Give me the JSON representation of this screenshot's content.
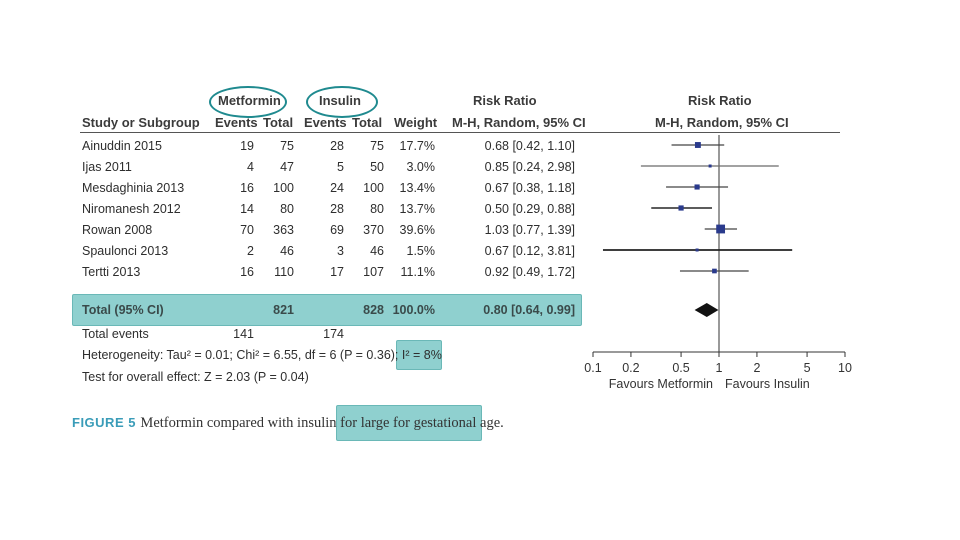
{
  "group_headers": {
    "metformin": "Metformin",
    "insulin": "Insulin"
  },
  "columns": {
    "study": "Study or Subgroup",
    "met_events": "Events",
    "met_total": "Total",
    "ins_events": "Events",
    "ins_total": "Total",
    "weight": "Weight",
    "rr_title": "Risk Ratio",
    "rr_method": "M-H, Random, 95% CI",
    "plot_title": "Risk Ratio",
    "plot_method": "M-H, Random, 95% CI"
  },
  "studies": [
    {
      "name": "Ainuddin 2015",
      "met_events": "19",
      "met_total": "75",
      "ins_events": "28",
      "ins_total": "75",
      "weight": "17.7%",
      "ci_text": "0.68 [0.42, 1.10]"
    },
    {
      "name": "Ijas 2011",
      "met_events": "4",
      "met_total": "47",
      "ins_events": "5",
      "ins_total": "50",
      "weight": "3.0%",
      "ci_text": "0.85 [0.24, 2.98]"
    },
    {
      "name": "Mesdaghinia 2013",
      "met_events": "16",
      "met_total": "100",
      "ins_events": "24",
      "ins_total": "100",
      "weight": "13.4%",
      "ci_text": "0.67 [0.38, 1.18]"
    },
    {
      "name": "Niromanesh 2012",
      "met_events": "14",
      "met_total": "80",
      "ins_events": "28",
      "ins_total": "80",
      "weight": "13.7%",
      "ci_text": "0.50 [0.29, 0.88]"
    },
    {
      "name": "Rowan 2008",
      "met_events": "70",
      "met_total": "363",
      "ins_events": "69",
      "ins_total": "370",
      "weight": "39.6%",
      "ci_text": "1.03 [0.77, 1.39]"
    },
    {
      "name": "Spaulonci 2013",
      "met_events": "2",
      "met_total": "46",
      "ins_events": "3",
      "ins_total": "46",
      "weight": "1.5%",
      "ci_text": "0.67 [0.12, 3.81]"
    },
    {
      "name": "Tertti 2013",
      "met_events": "16",
      "met_total": "110",
      "ins_events": "17",
      "ins_total": "107",
      "weight": "11.1%",
      "ci_text": "0.92 [0.49, 1.72]"
    }
  ],
  "total": {
    "label": "Total (95% CI)",
    "met_total": "821",
    "ins_total": "828",
    "weight": "100.0%",
    "ci_text": "0.80 [0.64, 0.99]"
  },
  "total_events": {
    "label": "Total events",
    "met": "141",
    "ins": "174"
  },
  "heterogeneity": {
    "text": "Heterogeneity: Tau² = 0.01; Chi² = 6.55, df = 6 (P = 0.36); ",
    "i2": "I² = 8%"
  },
  "overall_effect": "Test for overall effect: Z = 2.03 (P = 0.04)",
  "caption": {
    "figure": "FIGURE 5",
    "text": "Metformin compared with insulin for ",
    "highlight": "large for gestational age."
  },
  "colors": {
    "highlight": "#8fd0cf",
    "ellipse": "#1f8a8f",
    "marker": "#2a3a8c"
  },
  "chart_data": {
    "type": "forest",
    "title": "Risk Ratio",
    "method": "M-H, Random, 95% CI",
    "x_scale": "log",
    "xlim": [
      0.1,
      10
    ],
    "ticks": [
      0.1,
      0.2,
      0.5,
      1,
      2,
      5,
      10
    ],
    "tick_labels": [
      "0.1",
      "0.2",
      "0.5",
      "1",
      "2",
      "5",
      "10"
    ],
    "xlabel_left": "Favours Metformin",
    "xlabel_right": "Favours Insulin",
    "series": [
      {
        "name": "Ainuddin 2015",
        "rr": 0.68,
        "lo": 0.42,
        "hi": 1.1,
        "weight": 17.7
      },
      {
        "name": "Ijas 2011",
        "rr": 0.85,
        "lo": 0.24,
        "hi": 2.98,
        "weight": 3.0
      },
      {
        "name": "Mesdaghinia 2013",
        "rr": 0.67,
        "lo": 0.38,
        "hi": 1.18,
        "weight": 13.4
      },
      {
        "name": "Niromanesh 2012",
        "rr": 0.5,
        "lo": 0.29,
        "hi": 0.88,
        "weight": 13.7
      },
      {
        "name": "Rowan 2008",
        "rr": 1.03,
        "lo": 0.77,
        "hi": 1.39,
        "weight": 39.6
      },
      {
        "name": "Spaulonci 2013",
        "rr": 0.67,
        "lo": 0.12,
        "hi": 3.81,
        "weight": 1.5
      },
      {
        "name": "Tertti 2013",
        "rr": 0.92,
        "lo": 0.49,
        "hi": 1.72,
        "weight": 11.1
      }
    ],
    "pooled": {
      "name": "Total (95% CI)",
      "rr": 0.8,
      "lo": 0.64,
      "hi": 0.99
    }
  }
}
